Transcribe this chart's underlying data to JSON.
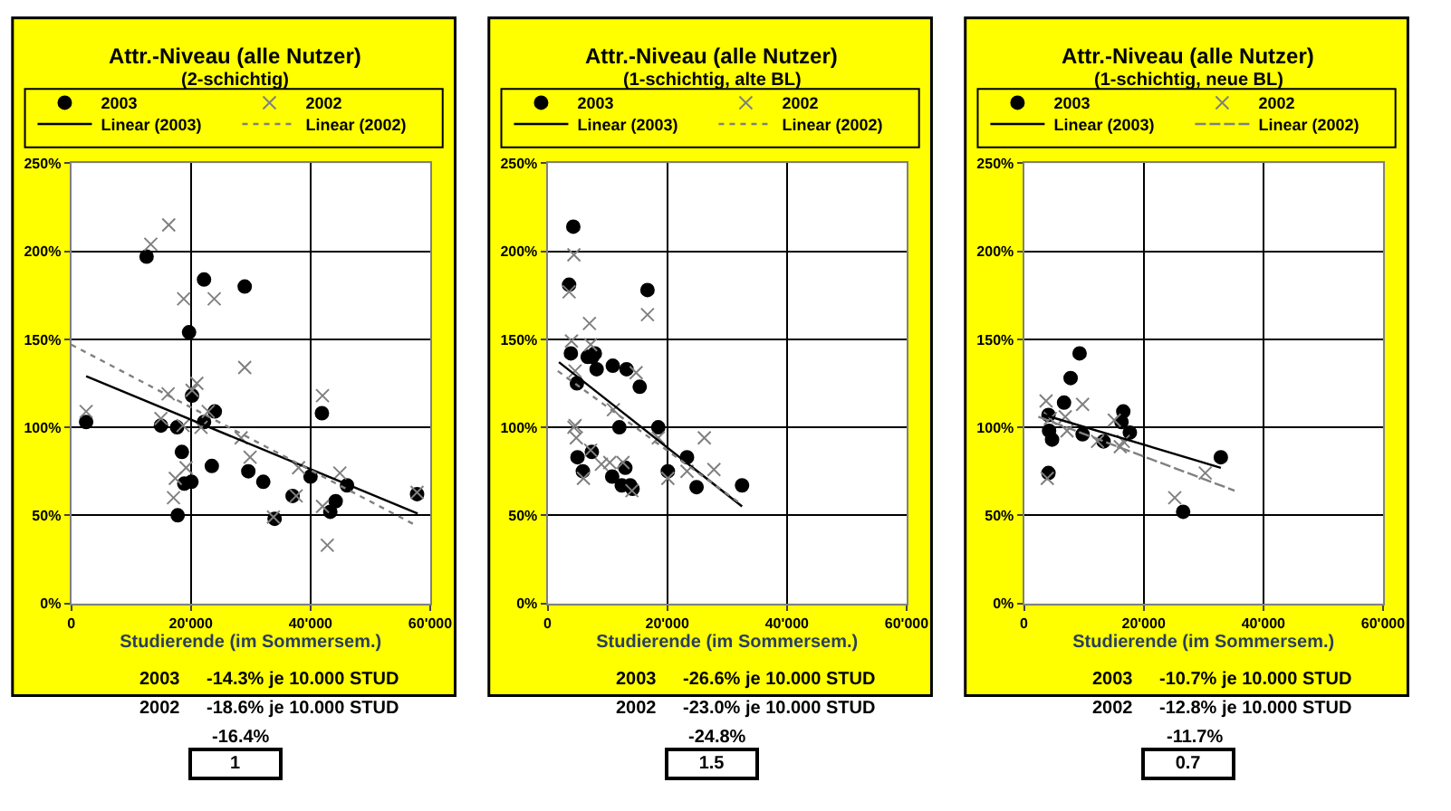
{
  "chart_data": [
    {
      "type": "scatter",
      "title": "Attr.-Niveau (alle Nutzer)",
      "subtitle": "(2-schichtig)",
      "xlabel": "Studierende (im Sommersem.)",
      "xlim": [
        0,
        60000
      ],
      "xticks": [
        {
          "value": 0,
          "label": "0"
        },
        {
          "value": 20000,
          "label": "20'000"
        },
        {
          "value": 40000,
          "label": "40'000"
        },
        {
          "value": 60000,
          "label": "60'000"
        }
      ],
      "ylim": [
        0,
        250
      ],
      "yticks": [
        {
          "value": 0,
          "label": "0%"
        },
        {
          "value": 50,
          "label": "50%"
        },
        {
          "value": 100,
          "label": "100%"
        },
        {
          "value": 150,
          "label": "150%"
        },
        {
          "value": 200,
          "label": "200%"
        },
        {
          "value": 250,
          "label": "250%"
        }
      ],
      "grid": true,
      "legend": "top",
      "annotations": [
        "2003",
        "-14.3% je 10.000 STUD",
        "2002",
        "-18.6% je 10.000 STUD",
        "-16.4%",
        "1"
      ],
      "series": [
        {
          "name": "2003",
          "type": "scatter",
          "color": "#000000",
          "marker": "circle",
          "x": [
            2500,
            12600,
            22200,
            29000,
            19700,
            20200,
            24000,
            22200,
            15000,
            17700,
            18500,
            23500,
            18900,
            20100,
            17800,
            29600,
            32100,
            34000,
            37000,
            40000,
            41900,
            46100,
            44200,
            43300,
            57800
          ],
          "values": [
            103,
            197,
            184,
            180,
            154,
            118,
            109,
            103,
            101,
            100,
            86,
            78,
            68,
            69,
            50,
            75,
            69,
            48,
            61,
            72,
            108,
            67,
            58,
            52,
            62
          ]
        },
        {
          "name": "2002",
          "type": "scatter",
          "color": "#808080",
          "marker": "cross",
          "x": [
            2500,
            13300,
            16300,
            18800,
            23900,
            29000,
            21000,
            16200,
            20200,
            15000,
            18700,
            21700,
            22900,
            19200,
            17400,
            17100,
            28400,
            29900,
            38000,
            37600,
            42000,
            44900,
            42000,
            42800,
            57800,
            33800
          ],
          "values": [
            109,
            204,
            215,
            173,
            173,
            134,
            125,
            119,
            121,
            105,
            101,
            100,
            109,
            77,
            71,
            60,
            94,
            83,
            77,
            61,
            118,
            74,
            55,
            33,
            63,
            49
          ]
        },
        {
          "name": "Linear (2003)",
          "type": "line",
          "color": "#000000",
          "line_style": "solid",
          "marker": "none",
          "x": [
            2500,
            57900
          ],
          "values": [
            129,
            51
          ]
        },
        {
          "name": "Linear (2002)",
          "type": "line",
          "color": "#808080",
          "line_style": "dotted",
          "marker": "none",
          "x": [
            0,
            57200
          ],
          "values": [
            147,
            45
          ]
        }
      ]
    },
    {
      "type": "scatter",
      "title": "Attr.-Niveau (alle Nutzer)",
      "subtitle": "(1-schichtig, alte BL)",
      "xlabel": "Studierende (im Sommersem.)",
      "xlim": [
        0,
        60000
      ],
      "xticks": [
        {
          "value": 0,
          "label": "0"
        },
        {
          "value": 20000,
          "label": "20'000"
        },
        {
          "value": 40000,
          "label": "40'000"
        },
        {
          "value": 60000,
          "label": "60'000"
        }
      ],
      "ylim": [
        0,
        250
      ],
      "yticks": [
        {
          "value": 0,
          "label": "0%"
        },
        {
          "value": 50,
          "label": "50%"
        },
        {
          "value": 100,
          "label": "100%"
        },
        {
          "value": 150,
          "label": "150%"
        },
        {
          "value": 200,
          "label": "200%"
        },
        {
          "value": 250,
          "label": "250%"
        }
      ],
      "grid": true,
      "legend": "top",
      "annotations": [
        "2003",
        "-26.6% je 10.000 STUD",
        "2002",
        "-23.0% je 10.000 STUD",
        "-24.8%",
        "1.5"
      ],
      "series": [
        {
          "name": "2003",
          "type": "scatter",
          "color": "#000000",
          "marker": "circle",
          "x": [
            4300,
            3600,
            3900,
            4900,
            6700,
            7900,
            7500,
            8200,
            10900,
            13200,
            16700,
            15400,
            12000,
            18500,
            5000,
            5900,
            10800,
            13000,
            12400,
            13800,
            14200,
            20100,
            23300,
            24900,
            32500,
            7400
          ],
          "values": [
            214,
            181,
            142,
            125,
            140,
            142,
            140,
            133,
            135,
            133,
            178,
            123,
            100,
            100,
            83,
            75,
            72,
            77,
            67,
            67,
            65,
            75,
            83,
            66,
            67,
            86
          ]
        },
        {
          "name": "2002",
          "type": "scatter",
          "color": "#808080",
          "marker": "cross",
          "x": [
            4400,
            3600,
            7000,
            4000,
            7200,
            4600,
            14800,
            16700,
            11000,
            4600,
            4400,
            4800,
            18500,
            26200,
            27800,
            23300,
            20100,
            6000,
            9000,
            10400,
            12600,
            14100,
            7200
          ],
          "values": [
            198,
            177,
            159,
            149,
            147,
            132,
            131,
            164,
            110,
            101,
            100,
            94,
            94,
            94,
            76,
            75,
            71,
            71,
            79,
            80,
            80,
            64,
            87
          ]
        },
        {
          "name": "Linear (2003)",
          "type": "line",
          "color": "#000000",
          "line_style": "solid",
          "marker": "none",
          "x": [
            1900,
            32500
          ],
          "values": [
            137,
            55
          ]
        },
        {
          "name": "Linear (2002)",
          "type": "line",
          "color": "#808080",
          "line_style": "dotted",
          "marker": "none",
          "x": [
            1700,
            32500
          ],
          "values": [
            132,
            56
          ]
        }
      ]
    },
    {
      "type": "scatter",
      "title": "Attr.-Niveau (alle Nutzer)",
      "subtitle": "(1-schichtig, neue BL)",
      "xlabel": "Studierende (im Sommersem.)",
      "xlim": [
        0,
        60000
      ],
      "xticks": [
        {
          "value": 0,
          "label": "0"
        },
        {
          "value": 20000,
          "label": "20'000"
        },
        {
          "value": 40000,
          "label": "40'000"
        },
        {
          "value": 60000,
          "label": "60'000"
        }
      ],
      "ylim": [
        0,
        250
      ],
      "yticks": [
        {
          "value": 0,
          "label": "0%"
        },
        {
          "value": 50,
          "label": "50%"
        },
        {
          "value": 100,
          "label": "100%"
        },
        {
          "value": 150,
          "label": "150%"
        },
        {
          "value": 200,
          "label": "200%"
        },
        {
          "value": 250,
          "label": "250%"
        }
      ],
      "grid": true,
      "legend": "top",
      "annotations": [
        "2003",
        "-10.7% je 10.000 STUD",
        "2002",
        "-12.8% je 10.000 STUD",
        "-11.7%",
        "0.7"
      ],
      "series": [
        {
          "name": "2003",
          "type": "scatter",
          "color": "#000000",
          "marker": "circle",
          "x": [
            9300,
            7800,
            6700,
            4100,
            4200,
            4700,
            4100,
            9800,
            13300,
            16600,
            16300,
            17700,
            32900,
            26600
          ],
          "values": [
            142,
            128,
            114,
            107,
            98,
            93,
            74,
            96,
            92,
            109,
            103,
            97,
            83,
            52
          ]
        },
        {
          "name": "2002",
          "type": "scatter",
          "color": "#808080",
          "marker": "cross",
          "x": [
            3700,
            9800,
            3900,
            4400,
            6900,
            7200,
            12300,
            15100,
            16100,
            16600,
            25200,
            30300
          ],
          "values": [
            115,
            113,
            71,
            105,
            106,
            98,
            92,
            104,
            89,
            92,
            60,
            74
          ]
        },
        {
          "name": "Linear (2003)",
          "type": "line",
          "color": "#000000",
          "line_style": "solid",
          "marker": "none",
          "x": [
            3400,
            32900
          ],
          "values": [
            107,
            77
          ]
        },
        {
          "name": "Linear (2002)",
          "type": "line",
          "color": "#808080",
          "line_style": "dashed",
          "marker": "none",
          "x": [
            2400,
            35200
          ],
          "values": [
            106,
            64
          ]
        }
      ]
    }
  ]
}
